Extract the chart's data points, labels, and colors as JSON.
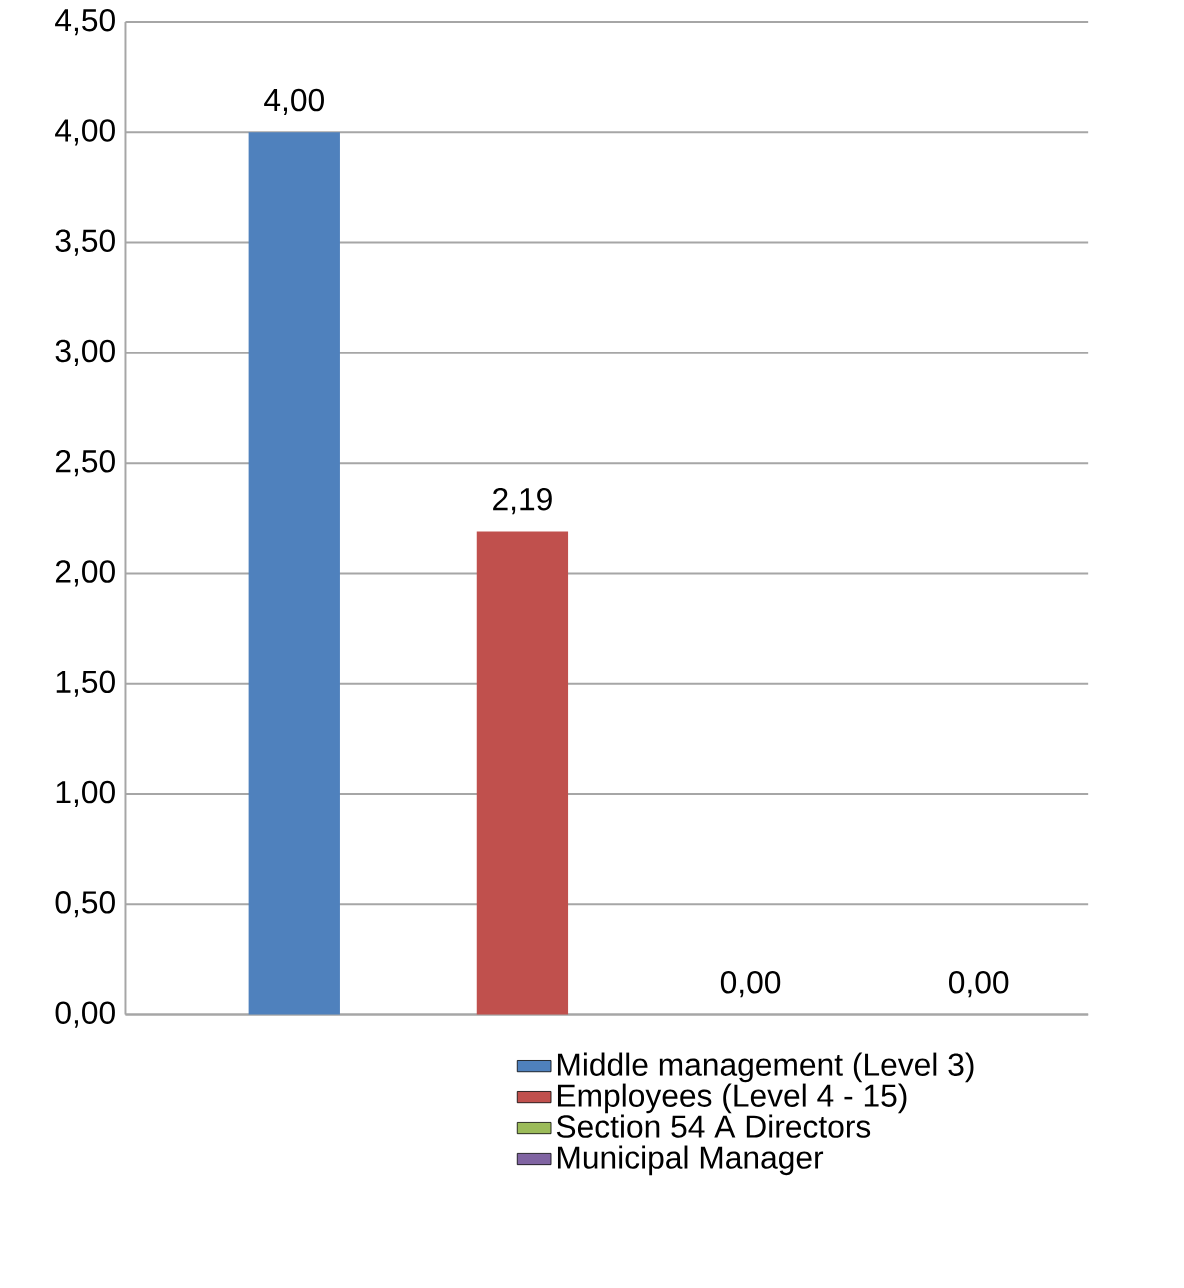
{
  "chart_data": {
    "type": "bar",
    "categories": [
      null,
      null,
      null,
      null
    ],
    "series": [
      {
        "name": "Middle management (Level 3)",
        "color": "#4f81bd",
        "values": [
          4.0,
          null,
          null,
          null
        ],
        "value_labels": [
          "4,00",
          null,
          null,
          null
        ]
      },
      {
        "name": "Employees (Level 4 - 15)",
        "color": "#c0504d",
        "values": [
          null,
          2.19,
          null,
          null
        ],
        "value_labels": [
          null,
          "2,19",
          null,
          null
        ]
      },
      {
        "name": "Section 54 A Directors",
        "color": "#9bbb59",
        "values": [
          null,
          null,
          0.0,
          null
        ],
        "value_labels": [
          null,
          null,
          "0,00",
          null
        ]
      },
      {
        "name": "Municipal Manager",
        "color": "#8064a2",
        "values": [
          null,
          null,
          null,
          0.0
        ],
        "value_labels": [
          null,
          null,
          null,
          "0,00"
        ]
      }
    ],
    "ylim": [
      0,
      4.5
    ],
    "yticks": [
      {
        "value": 0,
        "label": "0,00"
      },
      {
        "value": 0.5,
        "label": "0,50"
      },
      {
        "value": 1,
        "label": "1,00"
      },
      {
        "value": 1.5,
        "label": "1,50"
      },
      {
        "value": 2,
        "label": "2,00"
      },
      {
        "value": 2.5,
        "label": "2,50"
      },
      {
        "value": 3,
        "label": "3,00"
      },
      {
        "value": 3.5,
        "label": "3,50"
      },
      {
        "value": 4,
        "label": "4,00"
      },
      {
        "value": 4.5,
        "label": "4,50"
      }
    ],
    "grid": "y",
    "legend": "bottom"
  }
}
